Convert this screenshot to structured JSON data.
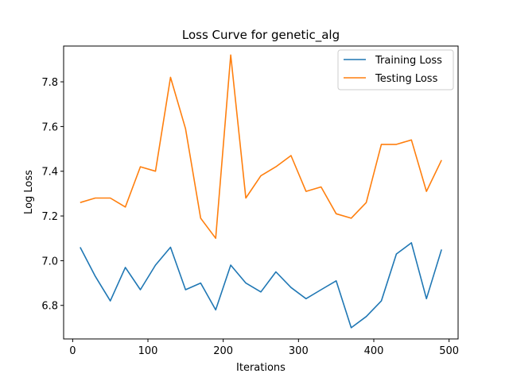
{
  "chart_data": {
    "type": "line",
    "title": "Loss Curve for genetic_alg",
    "xlabel": "Iterations",
    "ylabel": "Log Loss",
    "xlim": [
      -12,
      512
    ],
    "ylim": [
      6.65,
      7.96
    ],
    "xticks": [
      0,
      100,
      200,
      300,
      400,
      500
    ],
    "xtick_labels": [
      "0",
      "100",
      "200",
      "300",
      "400",
      "500"
    ],
    "yticks": [
      6.8,
      7.0,
      7.2,
      7.4,
      7.6,
      7.8
    ],
    "ytick_labels": [
      "6.8",
      "7.0",
      "7.2",
      "7.4",
      "7.6",
      "7.8"
    ],
    "grid": false,
    "legend_position": "top-right",
    "x": [
      10,
      30,
      50,
      70,
      90,
      110,
      130,
      150,
      170,
      190,
      210,
      230,
      250,
      270,
      290,
      310,
      330,
      350,
      370,
      390,
      410,
      430,
      450,
      470,
      490
    ],
    "series": [
      {
        "name": "Training Loss",
        "color": "#1f77b4",
        "values": [
          7.06,
          6.93,
          6.82,
          6.97,
          6.87,
          6.98,
          7.06,
          6.87,
          6.9,
          6.78,
          6.98,
          6.9,
          6.86,
          6.95,
          6.88,
          6.83,
          6.87,
          6.91,
          6.7,
          6.75,
          6.82,
          7.03,
          7.08,
          6.83,
          7.05
        ]
      },
      {
        "name": "Testing Loss",
        "color": "#ff7f0e",
        "values": [
          7.26,
          7.28,
          7.28,
          7.24,
          7.42,
          7.4,
          7.82,
          7.59,
          7.19,
          7.1,
          7.92,
          7.28,
          7.38,
          7.42,
          7.47,
          7.31,
          7.33,
          7.21,
          7.19,
          7.26,
          7.52,
          7.52,
          7.54,
          7.31,
          7.45
        ]
      }
    ]
  }
}
